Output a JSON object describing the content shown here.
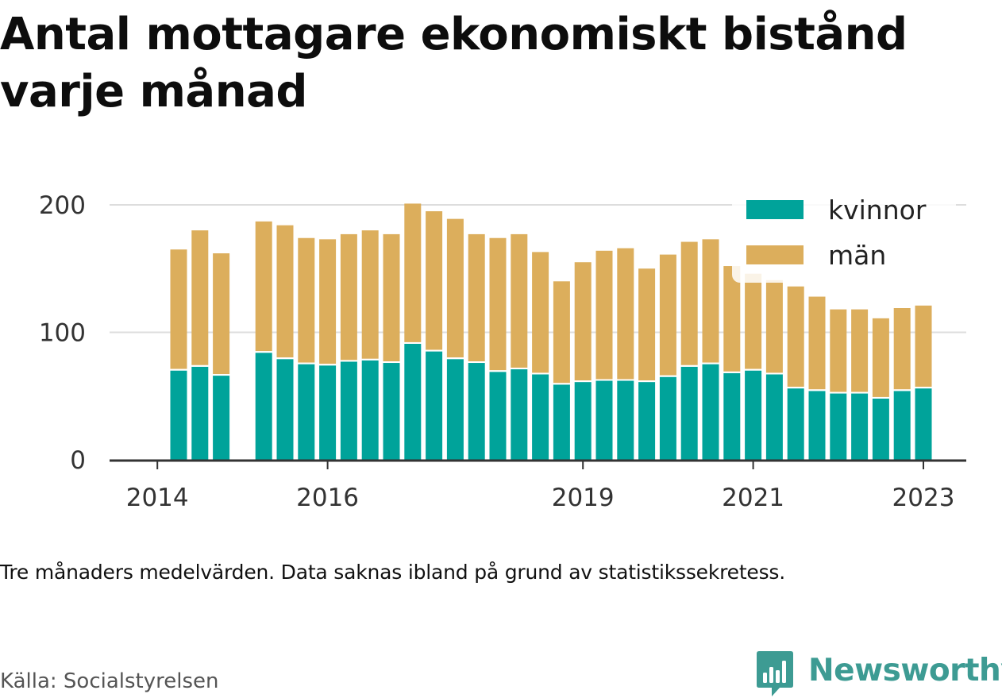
{
  "chart_data": {
    "type": "bar",
    "stacked": true,
    "title": "Antal mottagare ekonomiskt bistånd varje månad",
    "xlabel": "",
    "ylabel": "",
    "x_tick_labels": [
      "2014",
      "2016",
      "2019",
      "2021",
      "2023"
    ],
    "y_tick_labels": [
      "0",
      "100",
      "200"
    ],
    "y_ticks": [
      0,
      100,
      200
    ],
    "ylim": [
      0,
      200
    ],
    "grid": true,
    "legend_placement": "top-right",
    "categories": [
      "2014-04",
      "2014-07",
      "2014-10",
      "2015-01",
      "2015-04",
      "2015-07",
      "2015-10",
      "2016-01",
      "2016-04",
      "2016-07",
      "2016-10",
      "2017-01",
      "2017-04",
      "2017-07",
      "2017-10",
      "2018-01",
      "2018-04",
      "2018-07",
      "2018-10",
      "2019-01",
      "2019-04",
      "2019-07",
      "2019-10",
      "2020-01",
      "2020-04",
      "2020-07",
      "2020-10",
      "2021-01",
      "2021-04",
      "2021-07",
      "2021-10",
      "2022-01",
      "2022-04",
      "2022-07",
      "2022-10",
      "2023-01",
      "2023-04"
    ],
    "series": [
      {
        "name": "kvinnor",
        "color": "#00a39a",
        "values": [
          70,
          73,
          66,
          null,
          84,
          79,
          75,
          74,
          77,
          78,
          76,
          91,
          85,
          79,
          76,
          69,
          71,
          67,
          59,
          61,
          62,
          62,
          61,
          65,
          73,
          75,
          68,
          70,
          67,
          56,
          54,
          52,
          52,
          48,
          54,
          56,
          null
        ]
      },
      {
        "name": "män",
        "color": "#dcae5c",
        "values": [
          95,
          107,
          96,
          null,
          103,
          105,
          99,
          99,
          100,
          102,
          101,
          110,
          110,
          110,
          101,
          105,
          106,
          96,
          81,
          94,
          102,
          104,
          89,
          96,
          98,
          98,
          84,
          76,
          74,
          80,
          74,
          66,
          66,
          63,
          65,
          65,
          null
        ]
      }
    ]
  },
  "note": "Tre månaders medelvärden. Data saknas ibland på grund av statistikssekretess.",
  "source": "Källa: Socialstyrelsen",
  "brand": {
    "name": "Newsworthy",
    "icon": "newsworthy-logo-icon",
    "color": "#3d9b93"
  },
  "colors": {
    "axis": "#333333",
    "grid": "#dddddd",
    "tick_text": "#333333"
  }
}
